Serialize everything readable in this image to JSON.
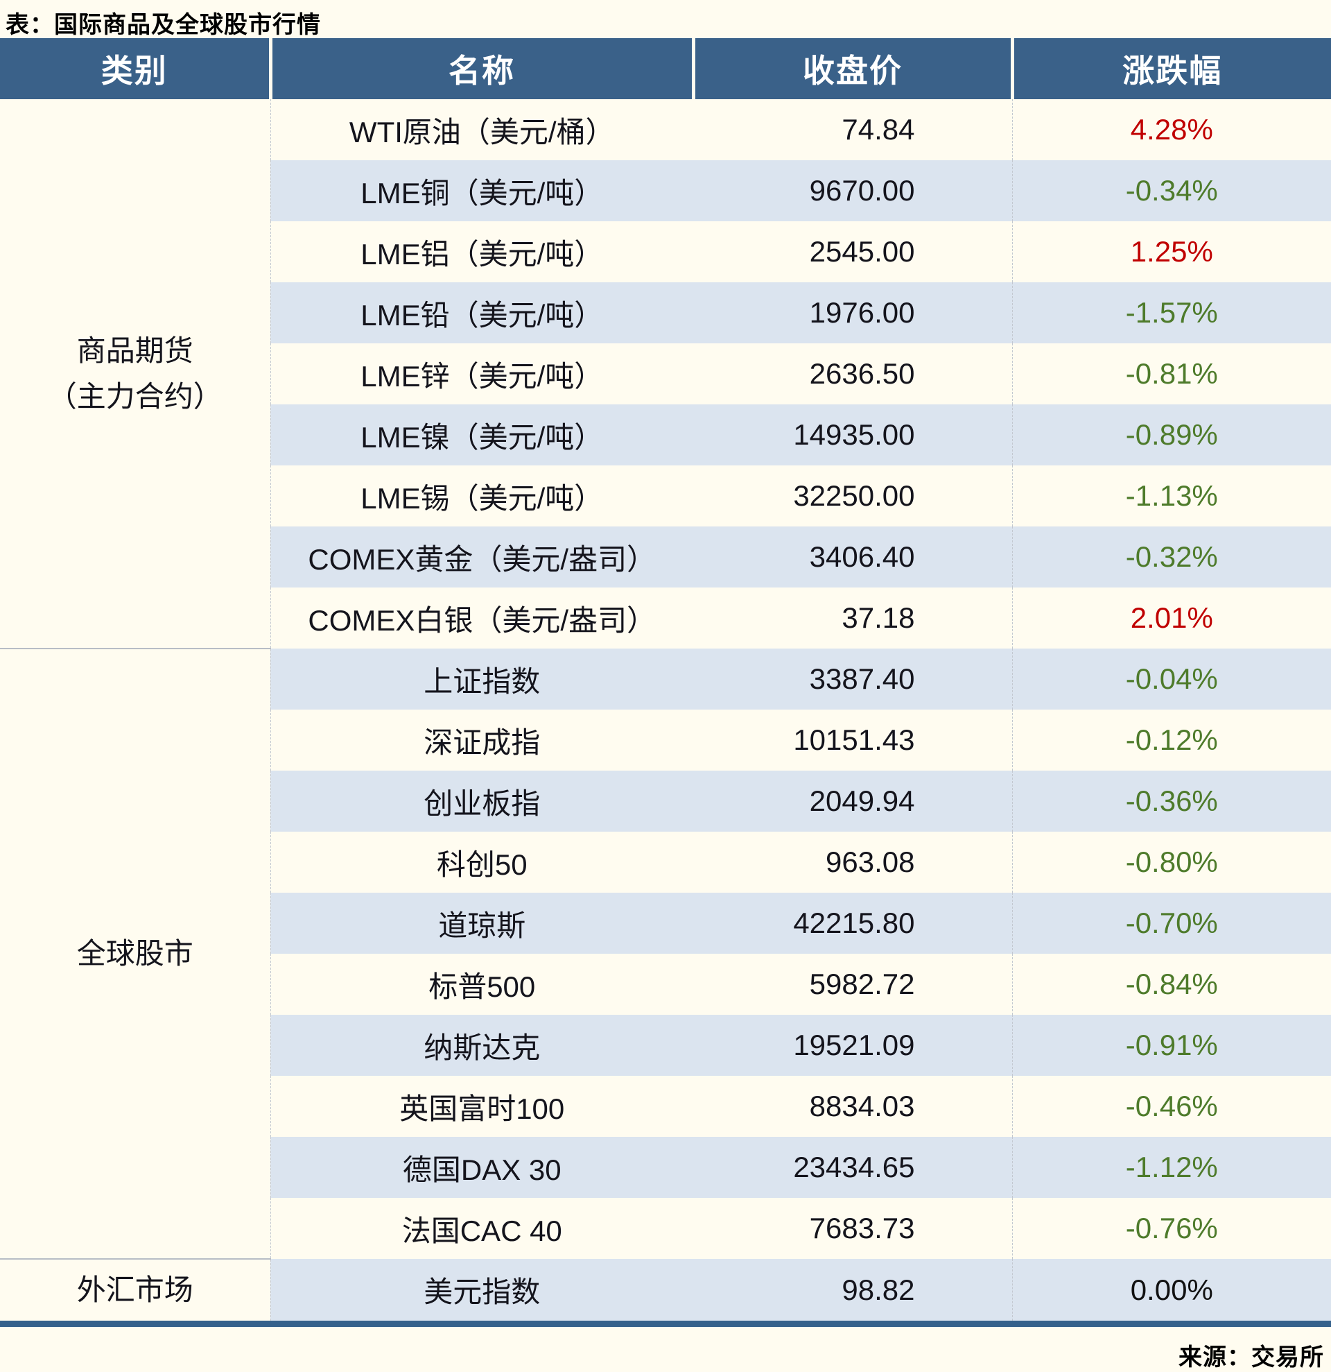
{
  "title": "表：国际商品及全球股市行情",
  "columns": [
    "类别",
    "名称",
    "收盘价",
    "涨跌幅"
  ],
  "source": "来源：交易所",
  "colors": {
    "header_bg": "#3a6189",
    "stripe": "#dbe4ef",
    "up": "#c00000",
    "down": "#4e7b2b",
    "flat": "#111111",
    "rule": "#35618c"
  },
  "groups": [
    {
      "category_lines": [
        "商品期货",
        "（主力合约）"
      ],
      "rows": [
        {
          "name": "WTI原油（美元/桶）",
          "close": "74.84",
          "change": "4.28%",
          "direction": "up"
        },
        {
          "name": "LME铜（美元/吨）",
          "close": "9670.00",
          "change": "-0.34%",
          "direction": "down"
        },
        {
          "name": "LME铝（美元/吨）",
          "close": "2545.00",
          "change": "1.25%",
          "direction": "up"
        },
        {
          "name": "LME铅（美元/吨）",
          "close": "1976.00",
          "change": "-1.57%",
          "direction": "down"
        },
        {
          "name": "LME锌（美元/吨）",
          "close": "2636.50",
          "change": "-0.81%",
          "direction": "down"
        },
        {
          "name": "LME镍（美元/吨）",
          "close": "14935.00",
          "change": "-0.89%",
          "direction": "down"
        },
        {
          "name": "LME锡（美元/吨）",
          "close": "32250.00",
          "change": "-1.13%",
          "direction": "down"
        },
        {
          "name": "COMEX黄金（美元/盎司）",
          "close": "3406.40",
          "change": "-0.32%",
          "direction": "down"
        },
        {
          "name": "COMEX白银（美元/盎司）",
          "close": "37.18",
          "change": "2.01%",
          "direction": "up"
        }
      ]
    },
    {
      "category_lines": [
        "全球股市"
      ],
      "rows": [
        {
          "name": "上证指数",
          "close": "3387.40",
          "change": "-0.04%",
          "direction": "down"
        },
        {
          "name": "深证成指",
          "close": "10151.43",
          "change": "-0.12%",
          "direction": "down"
        },
        {
          "name": "创业板指",
          "close": "2049.94",
          "change": "-0.36%",
          "direction": "down"
        },
        {
          "name": "科创50",
          "close": "963.08",
          "change": "-0.80%",
          "direction": "down"
        },
        {
          "name": "道琼斯",
          "close": "42215.80",
          "change": "-0.70%",
          "direction": "down"
        },
        {
          "name": "标普500",
          "close": "5982.72",
          "change": "-0.84%",
          "direction": "down"
        },
        {
          "name": "纳斯达克",
          "close": "19521.09",
          "change": "-0.91%",
          "direction": "down"
        },
        {
          "name": "英国富时100",
          "close": "8834.03",
          "change": "-0.46%",
          "direction": "down"
        },
        {
          "name": "德国DAX 30",
          "close": "23434.65",
          "change": "-1.12%",
          "direction": "down"
        },
        {
          "name": "法国CAC 40",
          "close": "7683.73",
          "change": "-0.76%",
          "direction": "down"
        }
      ]
    },
    {
      "category_lines": [
        "外汇市场"
      ],
      "rows": [
        {
          "name": "美元指数",
          "close": "98.82",
          "change": "0.00%",
          "direction": "flat"
        }
      ]
    }
  ]
}
